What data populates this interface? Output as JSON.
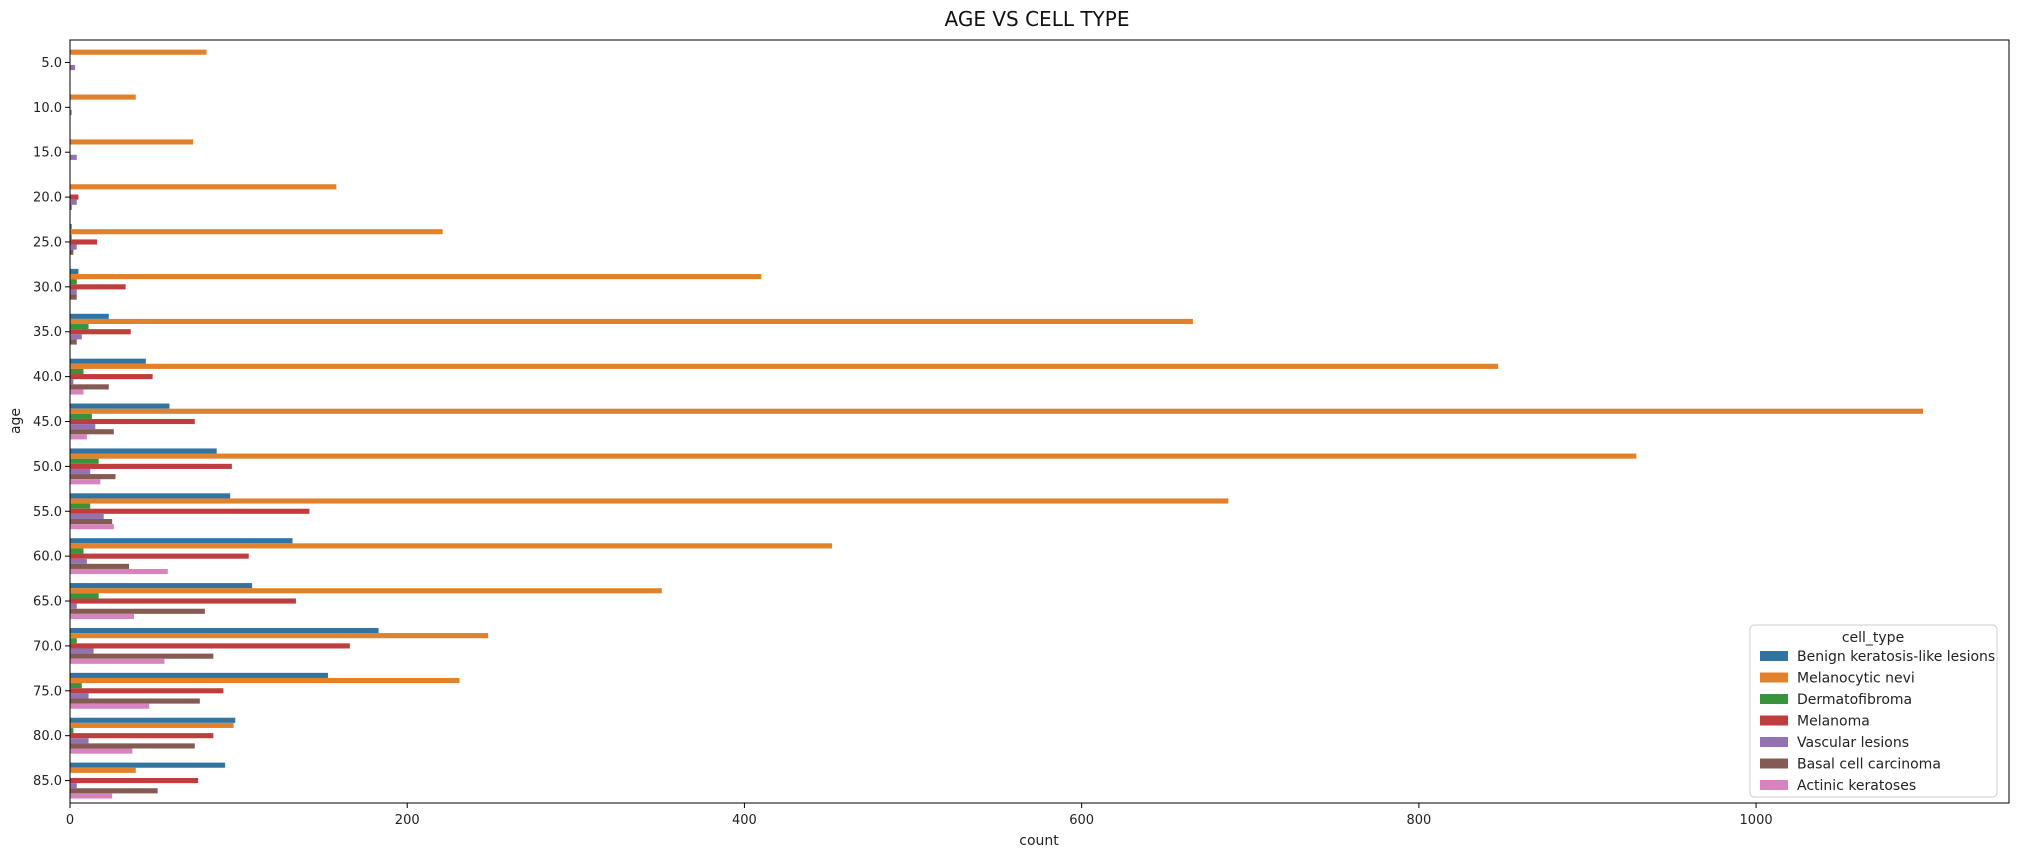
{
  "chart_data": {
    "type": "bar",
    "orientation": "horizontal",
    "title": "AGE VS CELL TYPE",
    "xlabel": "count",
    "ylabel": "age",
    "xlim": [
      0,
      1150
    ],
    "xticks": [
      0,
      200,
      400,
      600,
      800,
      1000
    ],
    "grid": false,
    "legend": {
      "title": "cell_type",
      "position": "lower-right"
    },
    "categories": [
      "5.0",
      "10.0",
      "15.0",
      "20.0",
      "25.0",
      "30.0",
      "35.0",
      "40.0",
      "45.0",
      "50.0",
      "55.0",
      "60.0",
      "65.0",
      "70.0",
      "75.0",
      "80.0",
      "85.0"
    ],
    "series": [
      {
        "name": "Benign keratosis-like lesions",
        "color": "#3274a1",
        "values": [
          0,
          0,
          0,
          0,
          1,
          5,
          23,
          45,
          59,
          87,
          95,
          132,
          108,
          183,
          153,
          98,
          92
        ]
      },
      {
        "name": "Melanocytic nevi",
        "color": "#e1812c",
        "values": [
          81,
          39,
          73,
          158,
          221,
          410,
          666,
          847,
          1099,
          929,
          687,
          452,
          351,
          248,
          231,
          97,
          39
        ]
      },
      {
        "name": "Dermatofibroma",
        "color": "#3a923a",
        "values": [
          0,
          0,
          0,
          0,
          1,
          4,
          11,
          8,
          13,
          17,
          12,
          8,
          17,
          4,
          7,
          2,
          0
        ]
      },
      {
        "name": "Melanoma",
        "color": "#c03d3e",
        "values": [
          0,
          0,
          0,
          5,
          16,
          33,
          36,
          49,
          74,
          96,
          142,
          106,
          134,
          166,
          91,
          85,
          76
        ]
      },
      {
        "name": "Vascular lesions",
        "color": "#9372b2",
        "values": [
          3,
          1,
          4,
          4,
          4,
          4,
          7,
          2,
          15,
          12,
          20,
          10,
          4,
          14,
          11,
          11,
          4
        ]
      },
      {
        "name": "Basal cell carcinoma",
        "color": "#845b53",
        "values": [
          0,
          0,
          0,
          1,
          2,
          4,
          4,
          23,
          26,
          27,
          25,
          35,
          80,
          85,
          77,
          74,
          52
        ]
      },
      {
        "name": "Actinic keratoses",
        "color": "#d684bd",
        "values": [
          0,
          0,
          0,
          0,
          0,
          0,
          0,
          8,
          10,
          18,
          26,
          58,
          38,
          56,
          47,
          37,
          25
        ]
      }
    ]
  }
}
